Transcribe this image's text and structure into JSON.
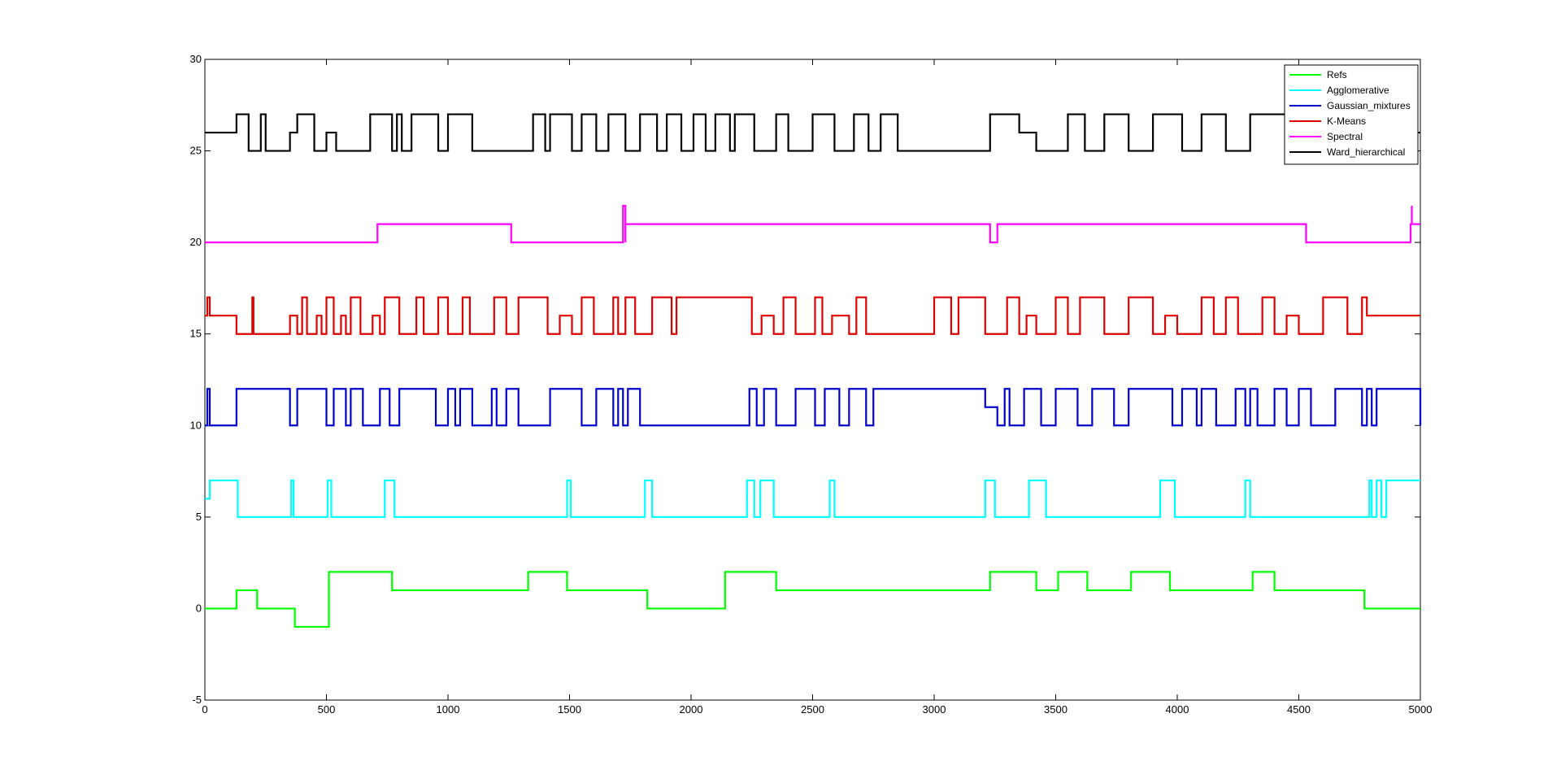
{
  "chart_data": {
    "type": "line",
    "title": "",
    "xlabel": "",
    "ylabel": "",
    "xlim": [
      0,
      5000
    ],
    "ylim": [
      -5,
      30
    ],
    "x_ticks": [
      0,
      500,
      1000,
      1500,
      2000,
      2500,
      3000,
      3500,
      4000,
      4500,
      5000
    ],
    "y_ticks": [
      -5,
      0,
      5,
      10,
      15,
      20,
      25,
      30
    ],
    "x_tick_labels": [
      "0",
      "500",
      "1000",
      "1500",
      "2000",
      "2500",
      "3000",
      "3500",
      "4000",
      "4500",
      "5000"
    ],
    "y_tick_labels": [
      "-5",
      "0",
      "5",
      "10",
      "15",
      "20",
      "25",
      "30"
    ],
    "grid": false,
    "legend_position": "top-right",
    "step": true,
    "series": [
      {
        "name": "Refs",
        "color": "#00ff00",
        "x": [
          0,
          130,
          215,
          370,
          510,
          770,
          1330,
          1490,
          1820,
          2140,
          2350,
          3230,
          3420,
          3510,
          3630,
          3810,
          3970,
          4310,
          4400,
          4770,
          5000
        ],
        "y": [
          0,
          1,
          0,
          -1,
          2,
          1,
          2,
          1,
          0,
          2,
          1,
          2,
          1,
          2,
          1,
          2,
          1,
          2,
          1,
          0,
          0
        ]
      },
      {
        "name": "Agglomerative",
        "color": "#00ffff",
        "x": [
          0,
          20,
          135,
          355,
          365,
          505,
          520,
          740,
          780,
          1490,
          1505,
          1810,
          1840,
          2230,
          2260,
          2285,
          2340,
          2570,
          2590,
          3210,
          3250,
          3390,
          3460,
          3930,
          3990,
          4280,
          4300,
          4790,
          4800,
          4820,
          4840,
          4860,
          4900,
          5000
        ],
        "y": [
          6,
          7,
          5,
          7,
          5,
          7,
          5,
          7,
          5,
          7,
          5,
          7,
          5,
          7,
          5,
          7,
          5,
          7,
          5,
          7,
          5,
          7,
          5,
          7,
          5,
          7,
          5,
          7,
          5,
          7,
          5,
          7,
          7,
          7
        ]
      },
      {
        "name": "Gaussian_mixtures",
        "color": "#0000cc",
        "x": [
          0,
          10,
          20,
          130,
          350,
          380,
          500,
          530,
          580,
          600,
          650,
          720,
          760,
          800,
          950,
          1000,
          1030,
          1050,
          1100,
          1180,
          1200,
          1240,
          1290,
          1420,
          1550,
          1610,
          1680,
          1700,
          1720,
          1740,
          1790,
          2240,
          2270,
          2300,
          2350,
          2430,
          2510,
          2550,
          2610,
          2650,
          2720,
          2750,
          3210,
          3260,
          3290,
          3310,
          3370,
          3440,
          3500,
          3590,
          3650,
          3740,
          3800,
          3980,
          4020,
          4080,
          4100,
          4160,
          4240,
          4280,
          4300,
          4330,
          4400,
          4450,
          4500,
          4550,
          4650,
          4760,
          4780,
          4800,
          4820,
          5000
        ],
        "y": [
          10,
          12,
          10,
          12,
          10,
          12,
          10,
          12,
          10,
          12,
          10,
          12,
          10,
          12,
          10,
          12,
          10,
          12,
          10,
          12,
          10,
          12,
          10,
          12,
          10,
          12,
          10,
          12,
          10,
          12,
          10,
          12,
          10,
          12,
          10,
          12,
          10,
          12,
          10,
          12,
          10,
          12,
          11,
          10,
          12,
          10,
          12,
          10,
          12,
          10,
          12,
          10,
          12,
          10,
          12,
          10,
          12,
          10,
          12,
          10,
          12,
          10,
          12,
          10,
          12,
          10,
          12,
          10,
          12,
          10,
          12,
          10
        ]
      },
      {
        "name": "K-Means",
        "color": "#dd0000",
        "x": [
          0,
          10,
          20,
          130,
          195,
          200,
          350,
          380,
          400,
          420,
          460,
          480,
          500,
          530,
          560,
          580,
          600,
          640,
          690,
          720,
          740,
          800,
          870,
          900,
          960,
          1000,
          1060,
          1090,
          1190,
          1240,
          1290,
          1410,
          1460,
          1510,
          1550,
          1600,
          1680,
          1700,
          1730,
          1770,
          1840,
          1920,
          1940,
          2250,
          2290,
          2340,
          2380,
          2430,
          2510,
          2540,
          2580,
          2650,
          2680,
          2720,
          3000,
          3070,
          3100,
          3210,
          3300,
          3350,
          3380,
          3420,
          3500,
          3550,
          3600,
          3700,
          3800,
          3900,
          3950,
          4000,
          4100,
          4150,
          4200,
          4250,
          4350,
          4400,
          4450,
          4500,
          4600,
          4700,
          4760,
          4780,
          5000
        ],
        "y": [
          16,
          17,
          16,
          15,
          17,
          15,
          16,
          15,
          17,
          15,
          16,
          15,
          17,
          15,
          16,
          15,
          17,
          15,
          16,
          15,
          17,
          15,
          17,
          15,
          17,
          15,
          17,
          15,
          17,
          15,
          17,
          15,
          16,
          15,
          17,
          15,
          17,
          15,
          17,
          15,
          17,
          15,
          17,
          15,
          16,
          15,
          17,
          15,
          17,
          15,
          16,
          15,
          17,
          15,
          17,
          15,
          17,
          15,
          17,
          15,
          16,
          15,
          17,
          15,
          17,
          15,
          17,
          15,
          16,
          15,
          17,
          15,
          17,
          15,
          17,
          15,
          16,
          15,
          17,
          15,
          17,
          16,
          16
        ]
      },
      {
        "name": "Spectral",
        "color": "#ff00ff",
        "x": [
          0,
          710,
          1260,
          1720,
          1730,
          2180,
          3230,
          3260,
          4530,
          4960,
          4970,
          5000
        ],
        "y": [
          20,
          21,
          20,
          22,
          21,
          21,
          20,
          21,
          20,
          21,
          21,
          21
        ],
        "spikes": [
          [
            1730,
            20
          ],
          [
            4965,
            21
          ]
        ]
      },
      {
        "name": "Ward_hierarchical",
        "color": "#000000",
        "x": [
          0,
          130,
          180,
          230,
          250,
          350,
          380,
          450,
          500,
          540,
          680,
          770,
          790,
          810,
          850,
          960,
          1000,
          1100,
          1350,
          1400,
          1420,
          1510,
          1550,
          1610,
          1660,
          1730,
          1790,
          1860,
          1900,
          1960,
          2010,
          2060,
          2100,
          2160,
          2180,
          2260,
          2350,
          2400,
          2500,
          2590,
          2670,
          2730,
          2780,
          2850,
          3230,
          3350,
          3420,
          3550,
          3620,
          3700,
          3800,
          3900,
          4020,
          4100,
          4200,
          4300,
          4560,
          5000
        ],
        "y": [
          26,
          27,
          25,
          27,
          25,
          26,
          27,
          25,
          26,
          25,
          27,
          25,
          27,
          25,
          27,
          25,
          27,
          25,
          27,
          25,
          27,
          25,
          27,
          25,
          27,
          25,
          27,
          25,
          27,
          25,
          27,
          25,
          27,
          25,
          27,
          25,
          27,
          25,
          27,
          25,
          27,
          25,
          27,
          25,
          27,
          26,
          25,
          27,
          25,
          27,
          25,
          27,
          25,
          27,
          25,
          27,
          26,
          26
        ]
      }
    ]
  }
}
